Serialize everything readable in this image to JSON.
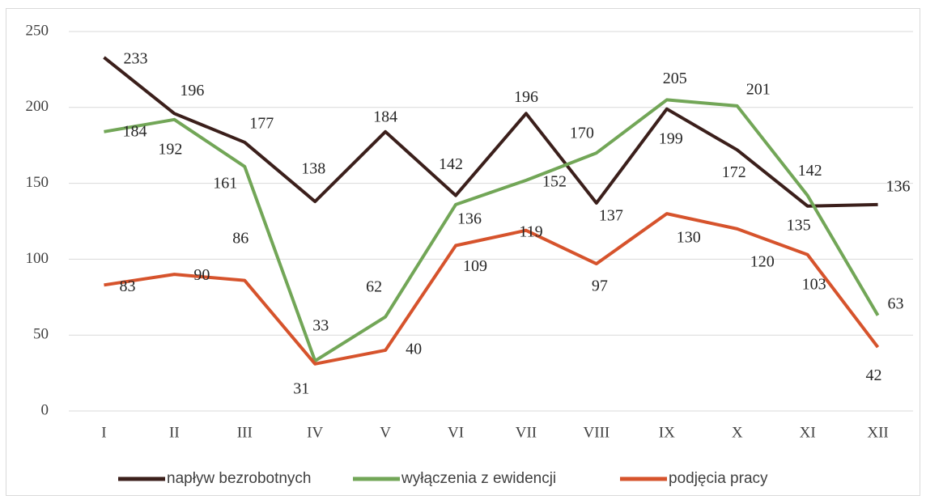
{
  "chart_data": {
    "type": "line",
    "categories": [
      "I",
      "II",
      "III",
      "IV",
      "V",
      "VI",
      "VII",
      "VIII",
      "IX",
      "X",
      "XI",
      "XII"
    ],
    "series": [
      {
        "name": "napływ bezrobotnych",
        "color": "#3b1f1b",
        "values": [
          233,
          196,
          177,
          138,
          184,
          142,
          196,
          137,
          199,
          172,
          135,
          136
        ]
      },
      {
        "name": "wyłączenia z ewidencji",
        "color": "#72a657",
        "values": [
          184,
          192,
          161,
          33,
          62,
          136,
          152,
          170,
          205,
          201,
          142,
          63
        ]
      },
      {
        "name": "podjęcia pracy",
        "color": "#d6532c",
        "values": [
          83,
          90,
          86,
          31,
          40,
          109,
          119,
          97,
          130,
          120,
          103,
          42
        ]
      }
    ],
    "ylim": [
      0,
      250
    ],
    "yticks": [
      0,
      50,
      100,
      150,
      200,
      250
    ],
    "grid": true,
    "legend": "bottom"
  }
}
